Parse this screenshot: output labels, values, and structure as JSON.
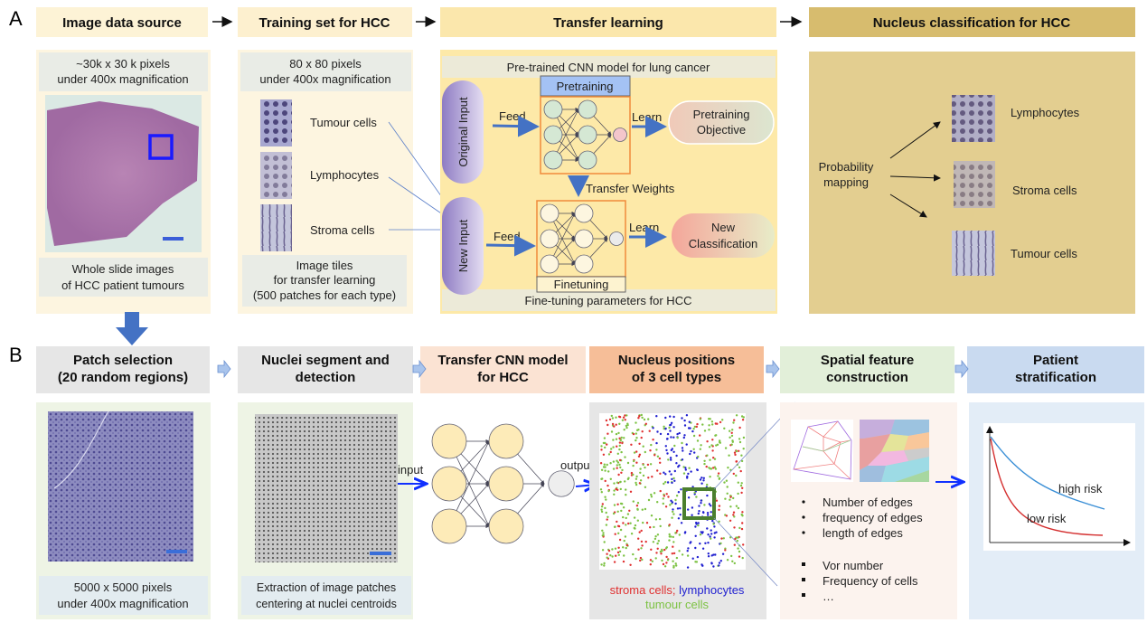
{
  "panel_labels": {
    "a": "A",
    "b": "B"
  },
  "row_a": {
    "headers": [
      "Image data source",
      "Training set for HCC",
      "Transfer learning",
      "Nucleus classification for HCC"
    ],
    "image_source": {
      "info": [
        "~30k x 30 k pixels",
        "under 400x magnification"
      ],
      "caption": [
        "Whole slide images",
        "of HCC patient tumours"
      ]
    },
    "training_set": {
      "info": [
        "80 x 80 pixels",
        "under 400x magnification"
      ],
      "tiles": [
        "Tumour cells",
        "Lymphocytes",
        "Stroma cells"
      ],
      "caption": [
        "Image tiles",
        "for transfer learning",
        "(500 patches for each type)"
      ]
    },
    "transfer_learning": {
      "top_bar": "Pre-trained CNN model for lung cancer",
      "bottom_bar": "Fine-tuning parameters for HCC",
      "original_input": "Original Input",
      "new_input": "New Input",
      "feed": "Feed",
      "learn": "Learn",
      "pretraining": "Pretraining",
      "finetuning": "Finetuning",
      "transfer_weights": "Transfer Weights",
      "pretraining_objective": [
        "Pretraining",
        "Objective"
      ],
      "new_classification": [
        "New",
        "Classification"
      ]
    },
    "nucleus_classification": {
      "mapping": [
        "Probability",
        "mapping"
      ],
      "classes": [
        "Lymphocytes",
        "Stroma cells",
        "Tumour cells"
      ]
    }
  },
  "row_b": {
    "headers": [
      [
        "Patch selection",
        "(20 random regions)"
      ],
      [
        "Nuclei segment and",
        "detection"
      ],
      [
        "Transfer CNN model",
        "for HCC"
      ],
      [
        "Nucleus positions",
        "of 3 cell types"
      ],
      [
        "Spatial feature",
        "construction"
      ],
      [
        "Patient",
        "stratification"
      ]
    ],
    "patch_caption": [
      "5000 x 5000 pixels",
      "under 400x magnification"
    ],
    "nuclei_caption": [
      "Extraction of image patches",
      "centering at nuclei centroids"
    ],
    "cnn": {
      "input": "input",
      "output": "output"
    },
    "positions_legend": {
      "stroma": "stroma cells;",
      "lymphocytes": "lymphocytes",
      "tumour": "tumour cells"
    },
    "features_edges": [
      "Number of edges",
      "frequency of edges",
      "length of edges"
    ],
    "features_cells": [
      "Vor number",
      "Frequency of cells",
      "…"
    ],
    "curves": {
      "high": "high risk",
      "low": "low risk"
    }
  },
  "colors": {
    "arrow_blue": "#4472c4",
    "stroma": "#e03030",
    "lymphocytes": "#2020d0",
    "tumour": "#7cc242",
    "high_risk": "#3a8fd6",
    "low_risk": "#d43030"
  }
}
